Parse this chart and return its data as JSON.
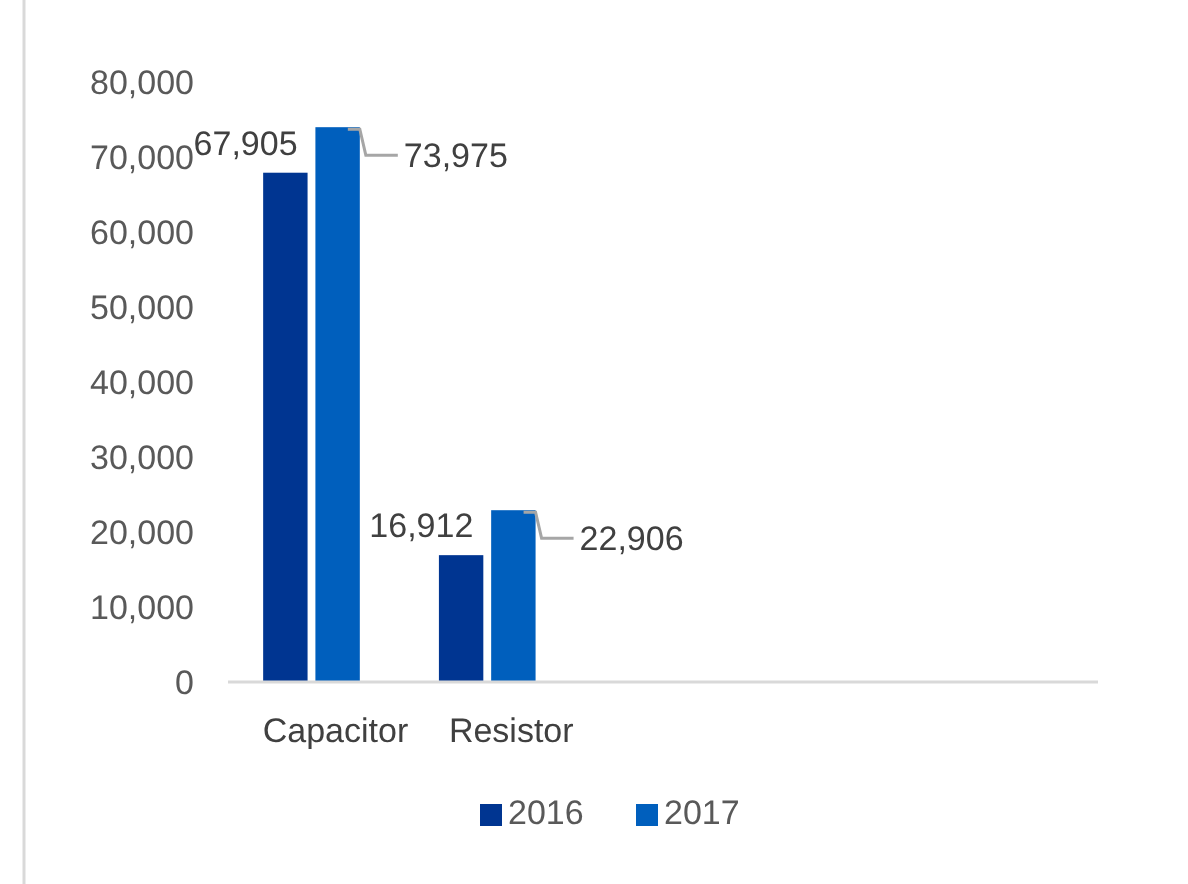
{
  "chart_data": {
    "type": "bar",
    "categories": [
      "Capacitor",
      "Resistor",
      null,
      null,
      null
    ],
    "series": [
      {
        "name": "2016",
        "color": "#003591",
        "values": [
          67905,
          16912,
          null,
          null,
          null
        ],
        "value_labels": [
          "67,905",
          "16,912",
          null,
          null,
          null
        ]
      },
      {
        "name": "2017",
        "color": "#005fbd",
        "values": [
          73975,
          22906,
          null,
          null,
          null
        ],
        "value_labels": [
          "73,975",
          "22,906",
          null,
          null,
          null
        ]
      }
    ],
    "ylim": [
      0,
      80000
    ],
    "yticks": [
      {
        "value": 0,
        "label": "0"
      },
      {
        "value": 10000,
        "label": "10,000"
      },
      {
        "value": 20000,
        "label": "20,000"
      },
      {
        "value": 30000,
        "label": "30,000"
      },
      {
        "value": 40000,
        "label": "40,000"
      },
      {
        "value": 50000,
        "label": "50,000"
      },
      {
        "value": 60000,
        "label": "60,000"
      },
      {
        "value": 70000,
        "label": "70,000"
      },
      {
        "value": 80000,
        "label": "80,000"
      }
    ],
    "legend": "bottom",
    "grid": false
  }
}
